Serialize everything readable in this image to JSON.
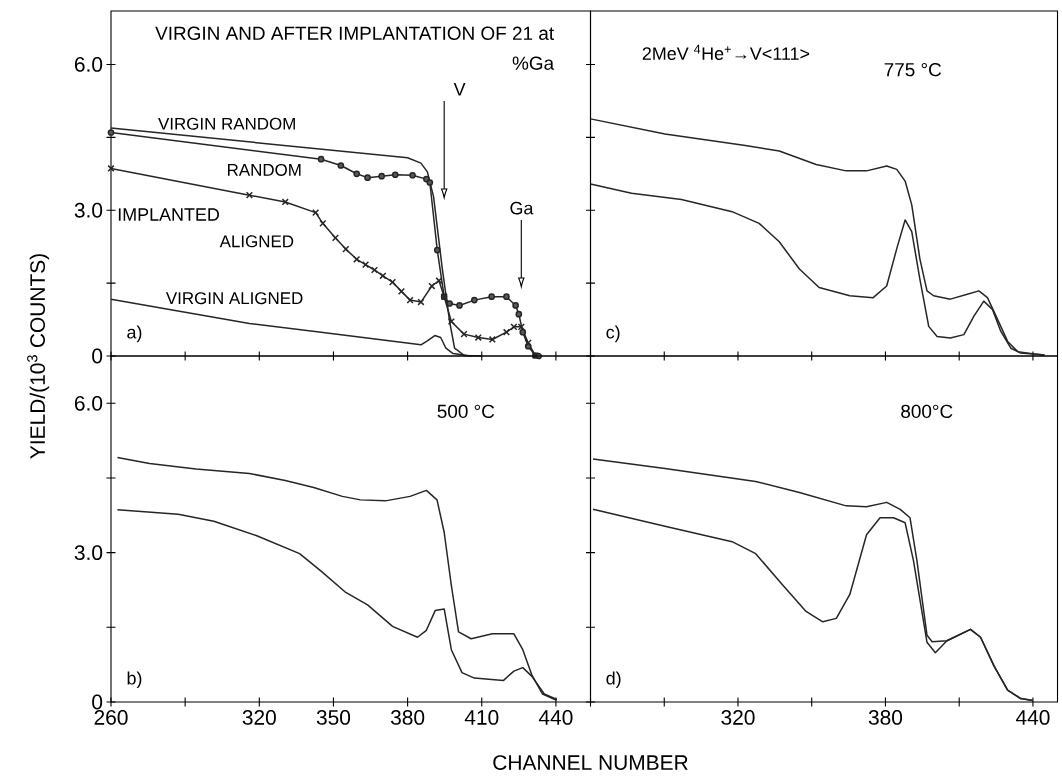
{
  "chart_data": [
    {
      "type": "line",
      "title": "VIRGIN AND AFTER IMPLANTATION OF 21 at %Ga",
      "annotations": [
        "IMPLANTED",
        "V",
        "Ga",
        "a)"
      ],
      "xlim": [
        260,
        454
      ],
      "ylim": [
        0,
        7.1
      ],
      "xticks": [
        260,
        {
          "value": 290,
          "label": null
        },
        320,
        350,
        380,
        410,
        440
      ],
      "yticks": [
        0,
        {
          "value": 1.5,
          "label": null
        },
        {
          "value": 3,
          "label": "3.0"
        },
        {
          "value": 4.5,
          "label": null
        },
        {
          "value": 6,
          "label": "6.0"
        }
      ],
      "tick_labels": "y",
      "series": [
        {
          "name": "VIRGIN RANDOM",
          "color": "#262626",
          "x": [
            260,
            380,
            385.4,
            388,
            390.5,
            394,
            397,
            399,
            403,
            410
          ],
          "values": [
            4.69,
            4.08,
            3.97,
            3.79,
            3.28,
            1.81,
            0.71,
            0.16,
            0.01,
            0
          ]
        },
        {
          "name": "RANDOM",
          "color": "#262626",
          "marker": "circle",
          "x": [
            260,
            345,
            353,
            359.4,
            363.8,
            369.5,
            375,
            382,
            387.6,
            389,
            392,
            394.8,
            397,
            401,
            407,
            414,
            420,
            423.7,
            425,
            426.6,
            428.8,
            431.7,
            433
          ],
          "values": [
            4.6,
            4.05,
            3.92,
            3.75,
            3.67,
            3.7,
            3.73,
            3.72,
            3.64,
            3.57,
            2.18,
            1.22,
            1.08,
            1.04,
            1.15,
            1.22,
            1.22,
            1.04,
            0.86,
            0.49,
            0.2,
            0.01,
            0
          ]
        },
        {
          "name": "ALIGNED",
          "color": "#262626",
          "marker": "cross",
          "x": [
            260,
            316,
            330.5,
            342.8,
            345.7,
            350.8,
            355,
            359.4,
            363,
            366.6,
            370,
            373.9,
            377.5,
            381,
            385.4,
            389.8,
            392.7,
            394.8,
            397.7,
            402.8,
            408.6,
            414.3,
            420,
            423,
            426,
            428.8,
            431.7
          ],
          "values": [
            3.86,
            3.31,
            3.17,
            2.95,
            2.73,
            2.43,
            2.2,
            1.99,
            1.88,
            1.77,
            1.65,
            1.52,
            1.33,
            1.15,
            1.11,
            1.44,
            1.55,
            1.22,
            0.71,
            0.45,
            0.38,
            0.34,
            0.49,
            0.6,
            0.6,
            0.27,
            0.01
          ]
        },
        {
          "name": "VIRGIN ALIGNED",
          "color": "#262626",
          "x": [
            260,
            316,
            345,
            385.4,
            388,
            391,
            393.4,
            395.5,
            398.4,
            405.7
          ],
          "values": [
            1.17,
            0.67,
            0.49,
            0.23,
            0.31,
            0.42,
            0.38,
            0.16,
            0.05,
            0
          ]
        }
      ]
    },
    {
      "type": "line",
      "title": "775 °C",
      "annotations": [
        "2MeV $^{4}$He$^{+}$→V<111>",
        "c)"
      ],
      "xlim": [
        260,
        450
      ],
      "ylim": [
        0,
        7.1
      ],
      "xticks": [
        {
          "value": 260,
          "label": null
        },
        {
          "value": 290,
          "label": null
        },
        {
          "value": 320,
          "label": null
        },
        {
          "value": 350,
          "label": null
        },
        {
          "value": 380,
          "label": null
        },
        {
          "value": 410,
          "label": null
        },
        {
          "value": 440,
          "label": null
        }
      ],
      "yticks": [
        {
          "value": 0,
          "label": null
        },
        {
          "value": 1.5,
          "label": null
        },
        {
          "value": 3,
          "label": null
        },
        {
          "value": 4.5,
          "label": null
        },
        {
          "value": 6,
          "label": null
        }
      ],
      "tick_labels": false,
      "series": [
        {
          "color": "#262626",
          "x": [
            260,
            290.3,
            323,
            336.8,
            351.8,
            364,
            372.3,
            380.5,
            384.6,
            388,
            390.7,
            394,
            396.9,
            399.6,
            406.4,
            413.3,
            418,
            421.5,
            425,
            429.7,
            433.8,
            440.6,
            444.7
          ],
          "values": [
            4.88,
            4.57,
            4.33,
            4.22,
            3.94,
            3.81,
            3.81,
            3.91,
            3.84,
            3.6,
            3.11,
            2.0,
            1.34,
            1.24,
            1.17,
            1.27,
            1.34,
            1.2,
            0.82,
            0.3,
            0.09,
            0.04,
            0.02
          ]
        },
        {
          "color": "#262626",
          "x": [
            260,
            276.7,
            297,
            317.6,
            328.6,
            336.8,
            345,
            353,
            365.5,
            375,
            380.5,
            384.6,
            388,
            390.7,
            394,
            397.6,
            401,
            406.4,
            411.9,
            416,
            420,
            423.5,
            426.9,
            431,
            435,
            444.7
          ],
          "values": [
            3.54,
            3.35,
            3.22,
            2.97,
            2.73,
            2.35,
            1.79,
            1.41,
            1.24,
            1.2,
            1.44,
            2.21,
            2.8,
            2.56,
            1.58,
            0.61,
            0.4,
            0.37,
            0.44,
            0.82,
            1.13,
            0.96,
            0.51,
            0.16,
            0.06,
            0.02
          ]
        }
      ]
    },
    {
      "type": "line",
      "title": "500 °C",
      "xlabel": "CHANNEL NUMBER",
      "ylabel": "YIELD/(10$^{3}$ COUNTS)",
      "annotations": [
        "b)"
      ],
      "xlim": [
        260,
        454
      ],
      "ylim": [
        0,
        6.95
      ],
      "xticks": [
        260,
        {
          "value": 290,
          "label": null
        },
        320,
        350,
        380,
        410,
        440
      ],
      "yticks": [
        0,
        {
          "value": 1.5,
          "label": null
        },
        {
          "value": 3,
          "label": "3.0"
        },
        {
          "value": 4.5,
          "label": null
        },
        {
          "value": 6,
          "label": "6.0"
        }
      ],
      "series": [
        {
          "color": "#262626",
          "x": [
            262.6,
            275.6,
            294.4,
            316,
            330.5,
            342,
            353.6,
            360.9,
            371,
            381,
            387.6,
            391.9,
            394.8,
            397.7,
            400.6,
            405.7,
            414.3,
            423,
            426.6,
            430.2,
            434.6,
            439.6,
            440.4
          ],
          "values": [
            4.91,
            4.79,
            4.68,
            4.59,
            4.45,
            4.31,
            4.13,
            4.06,
            4.04,
            4.13,
            4.25,
            4.06,
            3.41,
            2.34,
            1.41,
            1.27,
            1.37,
            1.37,
            1.05,
            0.55,
            0.16,
            0.05,
            0.04
          ]
        },
        {
          "color": "#262626",
          "x": [
            262.6,
            287.2,
            301.6,
            319,
            336.3,
            345,
            355,
            363.8,
            373.9,
            384,
            387.6,
            391.2,
            394.8,
            397.7,
            402,
            407,
            418.7,
            423,
            426.6,
            430.2,
            435.3,
            440.4
          ],
          "values": [
            3.86,
            3.77,
            3.63,
            3.34,
            2.98,
            2.63,
            2.2,
            1.95,
            1.52,
            1.3,
            1.44,
            1.84,
            1.87,
            1.05,
            0.59,
            0.48,
            0.43,
            0.62,
            0.69,
            0.52,
            0.16,
            0.05
          ]
        }
      ]
    },
    {
      "type": "line",
      "title": "800°C",
      "annotations": [
        "d)"
      ],
      "xlim": [
        260,
        450
      ],
      "ylim": [
        0,
        6.95
      ],
      "xticks": [
        {
          "value": 260,
          "label": null
        },
        {
          "value": 290,
          "label": null
        },
        320,
        {
          "value": 350,
          "label": null
        },
        380,
        {
          "value": 410,
          "label": null
        },
        440
      ],
      "yticks": [
        {
          "value": 0,
          "label": null
        },
        {
          "value": 1.5,
          "label": null
        },
        {
          "value": 3,
          "label": null
        },
        {
          "value": 4.5,
          "label": null
        },
        {
          "value": 6,
          "label": null
        }
      ],
      "tick_labels": "x",
      "series": [
        {
          "color": "#262626",
          "x": [
            261,
            290.3,
            327.2,
            345,
            364,
            372.3,
            380.5,
            386,
            390,
            392.8,
            396.9,
            399,
            405,
            414.6,
            418.7,
            424.2,
            429.7,
            435,
            440
          ],
          "values": [
            4.88,
            4.69,
            4.43,
            4.21,
            3.94,
            3.92,
            4.01,
            3.87,
            3.7,
            2.84,
            1.34,
            1.21,
            1.23,
            1.46,
            1.3,
            0.72,
            0.24,
            0.07,
            0.03
          ]
        },
        {
          "color": "#262626",
          "x": [
            261,
            290.3,
            317.6,
            327.2,
            338,
            347.7,
            354.5,
            360,
            365.5,
            372.3,
            377.8,
            383.3,
            388,
            391.4,
            396.9,
            400.3,
            405,
            414.6,
            418.7,
            424.2,
            429.7,
            435,
            440
          ],
          "values": [
            3.87,
            3.53,
            3.22,
            2.98,
            2.36,
            1.82,
            1.61,
            1.68,
            2.16,
            3.36,
            3.7,
            3.7,
            3.6,
            2.84,
            1.2,
            0.99,
            1.23,
            1.46,
            1.3,
            0.72,
            0.24,
            0.07,
            0.03
          ]
        }
      ]
    }
  ]
}
